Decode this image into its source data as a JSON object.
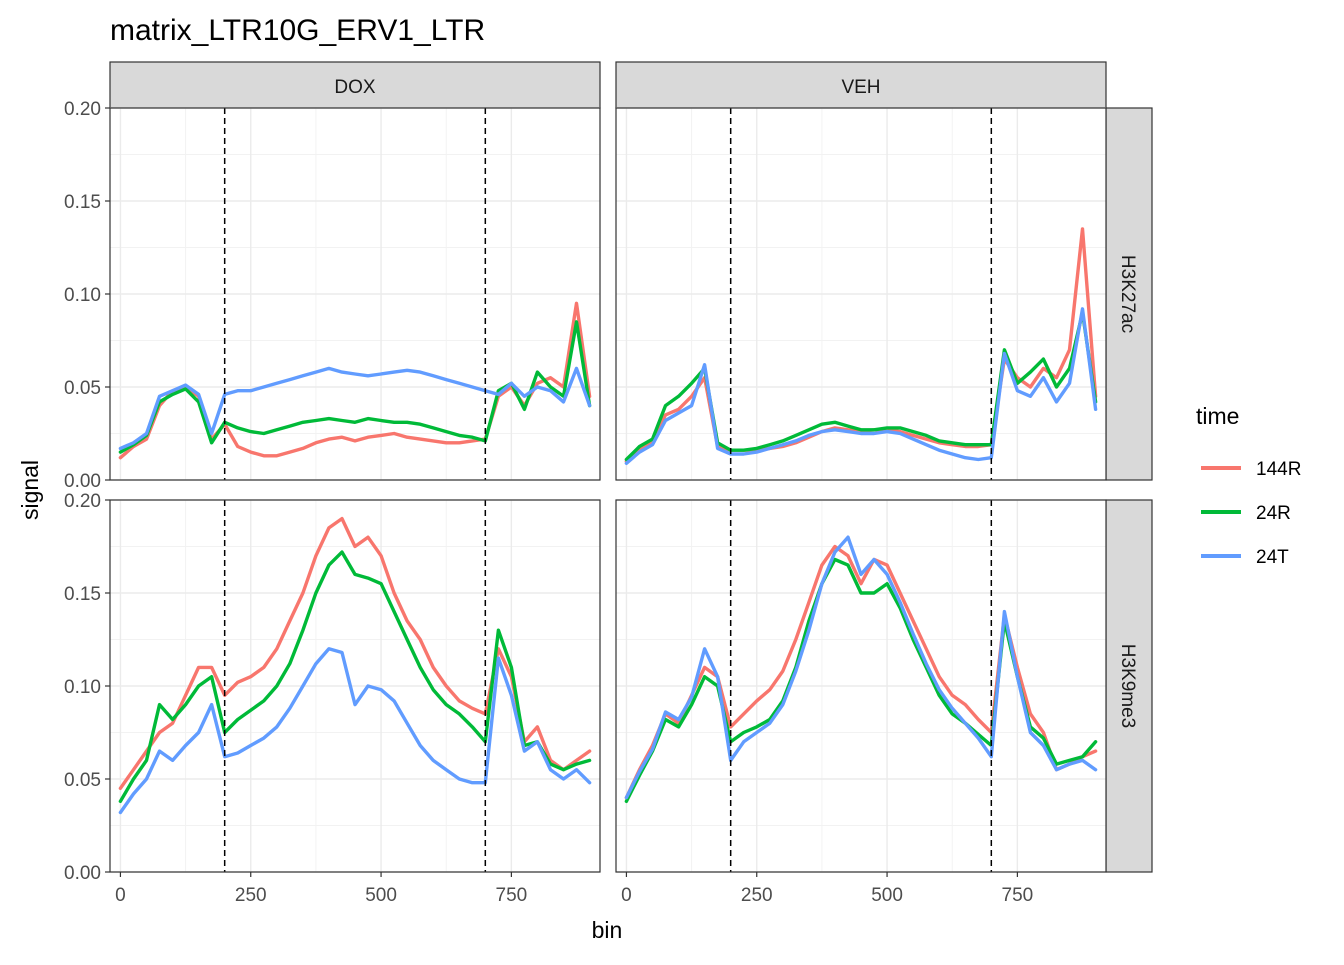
{
  "chart_data": {
    "type": "line",
    "title": "matrix_LTR10G_ERV1_LTR",
    "xlabel": "bin",
    "ylabel": "signal",
    "xlim": [
      -20,
      920
    ],
    "ylim": [
      0,
      0.2
    ],
    "x_ticks": [
      0,
      250,
      500,
      750
    ],
    "y_ticks": [
      0.0,
      0.05,
      0.1,
      0.15,
      0.2
    ],
    "x_tick_labels": [
      "0",
      "250",
      "500",
      "750"
    ],
    "y_tick_labels": [
      "0.00",
      "0.05",
      "0.10",
      "0.15",
      "0.20"
    ],
    "vlines": [
      200,
      700
    ],
    "grid": true,
    "legend": {
      "title": "time",
      "position": "right"
    },
    "columns": [
      "DOX",
      "VEH"
    ],
    "rows": [
      "H3K27ac",
      "H3K9me3"
    ],
    "series_names": [
      "144R",
      "24R",
      "24T"
    ],
    "series_colors": [
      "#F8766D",
      "#00BA38",
      "#619CFF"
    ],
    "panels": [
      {
        "column": "DOX",
        "row": "H3K27ac",
        "x": [
          0,
          25,
          50,
          75,
          100,
          125,
          150,
          175,
          200,
          225,
          250,
          275,
          300,
          325,
          350,
          375,
          400,
          425,
          450,
          475,
          500,
          525,
          550,
          575,
          600,
          625,
          650,
          675,
          700,
          725,
          750,
          775,
          800,
          825,
          850,
          875,
          900
        ],
        "series": [
          {
            "name": "144R",
            "values": [
              0.012,
              0.018,
              0.022,
              0.04,
              0.048,
              0.05,
              0.045,
              0.022,
              0.03,
              0.018,
              0.015,
              0.013,
              0.013,
              0.015,
              0.017,
              0.02,
              0.022,
              0.023,
              0.021,
              0.023,
              0.024,
              0.025,
              0.023,
              0.022,
              0.021,
              0.02,
              0.02,
              0.021,
              0.022,
              0.045,
              0.05,
              0.04,
              0.052,
              0.055,
              0.05,
              0.095,
              0.045
            ]
          },
          {
            "name": "24R",
            "values": [
              0.015,
              0.019,
              0.024,
              0.042,
              0.046,
              0.049,
              0.042,
              0.02,
              0.031,
              0.028,
              0.026,
              0.025,
              0.027,
              0.029,
              0.031,
              0.032,
              0.033,
              0.032,
              0.031,
              0.033,
              0.032,
              0.031,
              0.031,
              0.03,
              0.028,
              0.026,
              0.024,
              0.023,
              0.021,
              0.048,
              0.052,
              0.038,
              0.058,
              0.05,
              0.045,
              0.085,
              0.04
            ]
          },
          {
            "name": "24T",
            "values": [
              0.017,
              0.02,
              0.025,
              0.045,
              0.048,
              0.051,
              0.046,
              0.025,
              0.046,
              0.048,
              0.048,
              0.05,
              0.052,
              0.054,
              0.056,
              0.058,
              0.06,
              0.058,
              0.057,
              0.056,
              0.057,
              0.058,
              0.059,
              0.058,
              0.056,
              0.054,
              0.052,
              0.05,
              0.048,
              0.046,
              0.052,
              0.045,
              0.05,
              0.048,
              0.042,
              0.06,
              0.04
            ]
          }
        ]
      },
      {
        "column": "VEH",
        "row": "H3K27ac",
        "x": [
          0,
          25,
          50,
          75,
          100,
          125,
          150,
          175,
          200,
          225,
          250,
          275,
          300,
          325,
          350,
          375,
          400,
          425,
          450,
          475,
          500,
          525,
          550,
          575,
          600,
          625,
          650,
          675,
          700,
          725,
          750,
          775,
          800,
          825,
          850,
          875,
          900
        ],
        "series": [
          {
            "name": "144R",
            "values": [
              0.01,
              0.016,
              0.02,
              0.035,
              0.038,
              0.045,
              0.055,
              0.018,
              0.016,
              0.016,
              0.016,
              0.017,
              0.018,
              0.02,
              0.023,
              0.026,
              0.028,
              0.027,
              0.026,
              0.027,
              0.027,
              0.026,
              0.024,
              0.022,
              0.02,
              0.019,
              0.018,
              0.018,
              0.019,
              0.065,
              0.055,
              0.05,
              0.06,
              0.055,
              0.07,
              0.135,
              0.045
            ]
          },
          {
            "name": "24R",
            "values": [
              0.011,
              0.018,
              0.022,
              0.04,
              0.045,
              0.052,
              0.06,
              0.02,
              0.016,
              0.016,
              0.017,
              0.019,
              0.021,
              0.024,
              0.027,
              0.03,
              0.031,
              0.029,
              0.027,
              0.027,
              0.028,
              0.028,
              0.026,
              0.024,
              0.021,
              0.02,
              0.019,
              0.019,
              0.019,
              0.07,
              0.052,
              0.058,
              0.065,
              0.05,
              0.06,
              0.09,
              0.042
            ]
          },
          {
            "name": "24T",
            "values": [
              0.009,
              0.015,
              0.019,
              0.032,
              0.036,
              0.04,
              0.062,
              0.017,
              0.014,
              0.014,
              0.015,
              0.017,
              0.019,
              0.021,
              0.024,
              0.026,
              0.027,
              0.026,
              0.025,
              0.025,
              0.026,
              0.025,
              0.022,
              0.019,
              0.016,
              0.014,
              0.012,
              0.011,
              0.012,
              0.068,
              0.048,
              0.045,
              0.055,
              0.042,
              0.052,
              0.092,
              0.038
            ]
          }
        ]
      },
      {
        "column": "DOX",
        "row": "H3K9me3",
        "x": [
          0,
          25,
          50,
          75,
          100,
          125,
          150,
          175,
          200,
          225,
          250,
          275,
          300,
          325,
          350,
          375,
          400,
          425,
          450,
          475,
          500,
          525,
          550,
          575,
          600,
          625,
          650,
          675,
          700,
          725,
          750,
          775,
          800,
          825,
          850,
          875,
          900
        ],
        "series": [
          {
            "name": "144R",
            "values": [
              0.045,
              0.055,
              0.065,
              0.075,
              0.08,
              0.095,
              0.11,
              0.11,
              0.095,
              0.102,
              0.105,
              0.11,
              0.12,
              0.135,
              0.15,
              0.17,
              0.185,
              0.19,
              0.175,
              0.18,
              0.17,
              0.15,
              0.135,
              0.125,
              0.11,
              0.1,
              0.092,
              0.088,
              0.085,
              0.12,
              0.105,
              0.07,
              0.078,
              0.06,
              0.055,
              0.06,
              0.065
            ]
          },
          {
            "name": "24R",
            "values": [
              0.038,
              0.05,
              0.06,
              0.09,
              0.082,
              0.09,
              0.1,
              0.105,
              0.075,
              0.082,
              0.087,
              0.092,
              0.1,
              0.112,
              0.13,
              0.15,
              0.165,
              0.172,
              0.16,
              0.158,
              0.155,
              0.14,
              0.125,
              0.11,
              0.098,
              0.09,
              0.085,
              0.078,
              0.07,
              0.13,
              0.11,
              0.068,
              0.07,
              0.058,
              0.055,
              0.058,
              0.06
            ]
          },
          {
            "name": "24T",
            "values": [
              0.032,
              0.042,
              0.05,
              0.065,
              0.06,
              0.068,
              0.075,
              0.09,
              0.062,
              0.064,
              0.068,
              0.072,
              0.078,
              0.088,
              0.1,
              0.112,
              0.12,
              0.118,
              0.09,
              0.1,
              0.098,
              0.092,
              0.08,
              0.068,
              0.06,
              0.055,
              0.05,
              0.048,
              0.048,
              0.115,
              0.095,
              0.065,
              0.07,
              0.055,
              0.05,
              0.055,
              0.048
            ]
          }
        ]
      },
      {
        "column": "VEH",
        "row": "H3K9me3",
        "x": [
          0,
          25,
          50,
          75,
          100,
          125,
          150,
          175,
          200,
          225,
          250,
          275,
          300,
          325,
          350,
          375,
          400,
          425,
          450,
          475,
          500,
          525,
          550,
          575,
          600,
          625,
          650,
          675,
          700,
          725,
          750,
          775,
          800,
          825,
          850,
          875,
          900
        ],
        "series": [
          {
            "name": "144R",
            "values": [
              0.04,
              0.055,
              0.068,
              0.085,
              0.08,
              0.095,
              0.11,
              0.105,
              0.078,
              0.085,
              0.092,
              0.098,
              0.108,
              0.125,
              0.145,
              0.165,
              0.175,
              0.17,
              0.155,
              0.168,
              0.165,
              0.15,
              0.135,
              0.12,
              0.105,
              0.095,
              0.09,
              0.082,
              0.075,
              0.138,
              0.11,
              0.085,
              0.075,
              0.055,
              0.058,
              0.062,
              0.065
            ]
          },
          {
            "name": "24R",
            "values": [
              0.038,
              0.052,
              0.065,
              0.082,
              0.078,
              0.09,
              0.105,
              0.1,
              0.07,
              0.075,
              0.078,
              0.082,
              0.092,
              0.11,
              0.135,
              0.155,
              0.168,
              0.165,
              0.15,
              0.15,
              0.155,
              0.142,
              0.125,
              0.11,
              0.095,
              0.085,
              0.08,
              0.074,
              0.068,
              0.135,
              0.105,
              0.078,
              0.072,
              0.058,
              0.06,
              0.062,
              0.07
            ]
          },
          {
            "name": "24T",
            "values": [
              0.04,
              0.054,
              0.066,
              0.086,
              0.082,
              0.094,
              0.12,
              0.105,
              0.06,
              0.07,
              0.075,
              0.08,
              0.09,
              0.108,
              0.13,
              0.155,
              0.172,
              0.18,
              0.16,
              0.168,
              0.16,
              0.145,
              0.128,
              0.112,
              0.098,
              0.088,
              0.08,
              0.072,
              0.062,
              0.14,
              0.105,
              0.075,
              0.068,
              0.055,
              0.058,
              0.06,
              0.055
            ]
          }
        ]
      }
    ]
  }
}
